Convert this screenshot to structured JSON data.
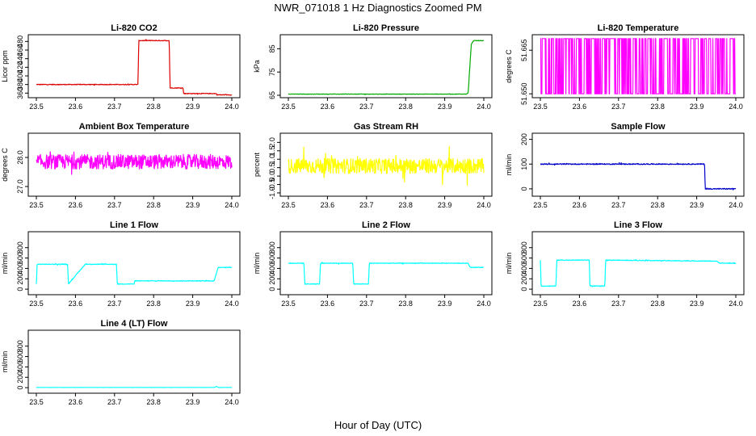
{
  "figure": {
    "title": "NWR_071018  1 Hz Diagnostics Zoomed PM",
    "xlabel": "Hour of Day (UTC)"
  },
  "chart_data": [
    {
      "type": "line",
      "title": "Li-820 CO2",
      "ylabel": "Licor ppm",
      "color": "#dd0000",
      "xlim": [
        23.5,
        24.0
      ],
      "ylim": [
        355,
        490
      ],
      "xticks": [
        "23.5",
        "23.6",
        "23.7",
        "23.8",
        "23.9",
        "24.0"
      ],
      "yticks": [
        360,
        380,
        400,
        420,
        440,
        460,
        480
      ],
      "noise": 0.8,
      "x": [
        23.5,
        23.76,
        23.762,
        23.84,
        23.842,
        23.875,
        23.877,
        23.96,
        23.962,
        24.0
      ],
      "y": [
        380,
        380,
        482,
        482,
        372,
        372,
        359,
        359,
        356,
        356
      ]
    },
    {
      "type": "line",
      "title": "Li-820 Pressure",
      "ylabel": "kPa",
      "color": "#00aa00",
      "xlim": [
        23.5,
        24.0
      ],
      "ylim": [
        65,
        90
      ],
      "xticks": [
        "23.5",
        "23.6",
        "23.7",
        "23.8",
        "23.9",
        "24.0"
      ],
      "yticks": [
        65,
        75,
        85
      ],
      "noise": 0.1,
      "x": [
        23.5,
        23.955,
        23.96,
        23.968,
        23.975,
        24.0
      ],
      "y": [
        65.5,
        65.5,
        66,
        87,
        88.5,
        88.5
      ]
    },
    {
      "type": "line",
      "title": "Li-820 Temperature",
      "ylabel": "degrees C",
      "color": "#ff00ff",
      "xlim": [
        23.5,
        24.0
      ],
      "ylim": [
        51.6495,
        51.6695
      ],
      "xticks": [
        "23.5",
        "23.6",
        "23.7",
        "23.8",
        "23.9",
        "24.0"
      ],
      "yticks": [
        51.65,
        51.665
      ],
      "ytick_labels": [
        "51.650",
        "51.665"
      ],
      "switching": true,
      "low": 51.65,
      "high": 51.669
    },
    {
      "type": "line",
      "title": "Ambient Box Temperature",
      "ylabel": "degrees C",
      "color": "#ff00ff",
      "xlim": [
        23.5,
        24.0
      ],
      "ylim": [
        26.75,
        28.75
      ],
      "xticks": [
        "23.5",
        "23.6",
        "23.7",
        "23.8",
        "23.9",
        "24.0"
      ],
      "yticks": [
        27.0,
        28.0
      ],
      "ytick_labels": [
        "27.0",
        "28.0"
      ],
      "noise": 0.25,
      "x": [
        23.5,
        24.0
      ],
      "y": [
        27.85,
        27.85
      ]
    },
    {
      "type": "line",
      "title": "Gas Stream RH",
      "ylabel": "percent",
      "color": "#ffff00",
      "xlim": [
        23.5,
        24.0
      ],
      "ylim": [
        -1.05,
        2.4
      ],
      "xticks": [
        "23.5",
        "23.6",
        "23.7",
        "23.8",
        "23.9",
        "24.0"
      ],
      "yticks": [
        -1.0,
        -0.5,
        0.0,
        0.5,
        1.0,
        1.5,
        2.0
      ],
      "ytick_labels": [
        "-1.0",
        "-0.5",
        "0.0",
        "0.5",
        "1.0",
        "1.5",
        "2.0"
      ],
      "noise": 0.45,
      "x": [
        23.5,
        24.0
      ],
      "y": [
        0.6,
        0.6
      ]
    },
    {
      "type": "line",
      "title": "Sample Flow",
      "ylabel": "ml/min",
      "color": "#0000cc",
      "xlim": [
        23.5,
        24.0
      ],
      "ylim": [
        -20,
        215
      ],
      "xticks": [
        "23.5",
        "23.6",
        "23.7",
        "23.8",
        "23.9",
        "24.0"
      ],
      "yticks": [
        0,
        100,
        200
      ],
      "noise": 2,
      "x": [
        23.5,
        23.92,
        23.922,
        24.0
      ],
      "y": [
        100,
        100,
        0,
        0
      ]
    },
    {
      "type": "line",
      "title": "Line 1 Flow",
      "ylabel": "ml/min",
      "color": "#00ffff",
      "xlim": [
        23.5,
        24.0
      ],
      "ylim": [
        -60,
        1060
      ],
      "xticks": [
        "23.5",
        "23.6",
        "23.7",
        "23.8",
        "23.9",
        "24.0"
      ],
      "yticks": [
        0,
        200,
        400,
        600,
        800
      ],
      "noise": 6,
      "x": [
        23.5,
        23.502,
        23.58,
        23.582,
        23.625,
        23.627,
        23.705,
        23.707,
        23.75,
        23.752,
        23.955,
        23.965,
        24.0
      ],
      "y": [
        100,
        480,
        480,
        100,
        480,
        480,
        480,
        100,
        100,
        160,
        160,
        420,
        420
      ]
    },
    {
      "type": "line",
      "title": "Line 2 Flow",
      "ylabel": "ml/min",
      "color": "#00ffff",
      "xlim": [
        23.5,
        24.0
      ],
      "ylim": [
        -60,
        1060
      ],
      "xticks": [
        "23.5",
        "23.6",
        "23.7",
        "23.8",
        "23.9",
        "24.0"
      ],
      "yticks": [
        0,
        200,
        400,
        600,
        800
      ],
      "noise": 6,
      "x": [
        23.5,
        23.54,
        23.542,
        23.58,
        23.582,
        23.665,
        23.667,
        23.705,
        23.707,
        23.96,
        23.965,
        24.0
      ],
      "y": [
        500,
        500,
        100,
        100,
        500,
        500,
        100,
        100,
        500,
        500,
        420,
        420
      ]
    },
    {
      "type": "line",
      "title": "Line 3 Flow",
      "ylabel": "ml/min",
      "color": "#00ffff",
      "xlim": [
        23.5,
        24.0
      ],
      "ylim": [
        -60,
        1060
      ],
      "xticks": [
        "23.5",
        "23.6",
        "23.7",
        "23.8",
        "23.9",
        "24.0"
      ],
      "yticks": [
        0,
        200,
        400,
        600,
        800
      ],
      "noise": 6,
      "x": [
        23.5,
        23.502,
        23.54,
        23.542,
        23.625,
        23.627,
        23.665,
        23.667,
        23.95,
        23.96,
        24.0
      ],
      "y": [
        560,
        60,
        60,
        560,
        560,
        60,
        60,
        560,
        540,
        500,
        500
      ]
    },
    {
      "type": "line",
      "title": "Line 4 (LT) Flow",
      "ylabel": "ml/min",
      "color": "#00ffff",
      "xlim": [
        23.5,
        24.0
      ],
      "ylim": [
        -60,
        1060
      ],
      "xticks": [
        "23.5",
        "23.6",
        "23.7",
        "23.8",
        "23.9",
        "24.0"
      ],
      "yticks": [
        0,
        200,
        400,
        600,
        800
      ],
      "noise": 1,
      "x": [
        23.5,
        23.955,
        23.96,
        23.965,
        24.0
      ],
      "y": [
        5,
        5,
        25,
        5,
        5
      ]
    }
  ]
}
